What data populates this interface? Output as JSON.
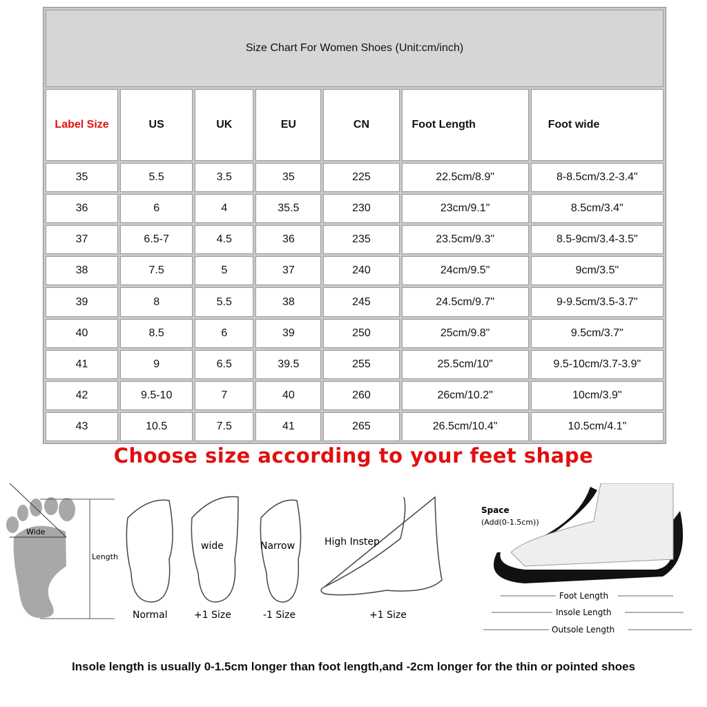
{
  "title": "Size Chart For Women Shoes (Unit:cm/inch)",
  "columns": [
    "Label Size",
    "US",
    "UK",
    "EU",
    "CN",
    "Foot Length",
    "Foot wide"
  ],
  "rows": [
    [
      "35",
      "5.5",
      "3.5",
      "35",
      "225",
      "22.5cm/8.9\"",
      "8-8.5cm/3.2-3.4\""
    ],
    [
      "36",
      "6",
      "4",
      "35.5",
      "230",
      "23cm/9.1\"",
      "8.5cm/3.4\""
    ],
    [
      "37",
      "6.5-7",
      "4.5",
      "36",
      "235",
      "23.5cm/9.3\"",
      "8.5-9cm/3.4-3.5\""
    ],
    [
      "38",
      "7.5",
      "5",
      "37",
      "240",
      "24cm/9.5\"",
      "9cm/3.5\""
    ],
    [
      "39",
      "8",
      "5.5",
      "38",
      "245",
      "24.5cm/9.7\"",
      "9-9.5cm/3.5-3.7\""
    ],
    [
      "40",
      "8.5",
      "6",
      "39",
      "250",
      "25cm/9.8\"",
      "9.5cm/3.7\""
    ],
    [
      "41",
      "9",
      "6.5",
      "39.5",
      "255",
      "25.5cm/10\"",
      "9.5-10cm/3.7-3.9\""
    ],
    [
      "42",
      "9.5-10",
      "7",
      "40",
      "260",
      "26cm/10.2\"",
      "10cm/3.9\""
    ],
    [
      "43",
      "10.5",
      "7.5",
      "41",
      "265",
      "26.5cm/10.4\"",
      "10.5cm/4.1\""
    ]
  ],
  "advice": "Choose size according to your feet shape",
  "illustration": {
    "wide": "Wide",
    "length": "Length",
    "normal": "Normal",
    "wide_label": "wide",
    "plus_one": "+1 Size",
    "narrow": "Narrow",
    "minus_one": "-1 Size",
    "high_instep": "High Instep",
    "high_instep_size": "+1 Size",
    "space": "Space",
    "space_add": "(Add(0-1.5cm))",
    "foot_length": "Foot Length",
    "insole_length": "Insole Length",
    "outsole_length": "Outsole Length"
  },
  "note": "Insole length is usually 0-1.5cm longer than foot length,and -2cm longer for the thin or pointed shoes",
  "colors": {
    "accent_red": "#e01010",
    "header_gray": "#d6d6d6"
  }
}
